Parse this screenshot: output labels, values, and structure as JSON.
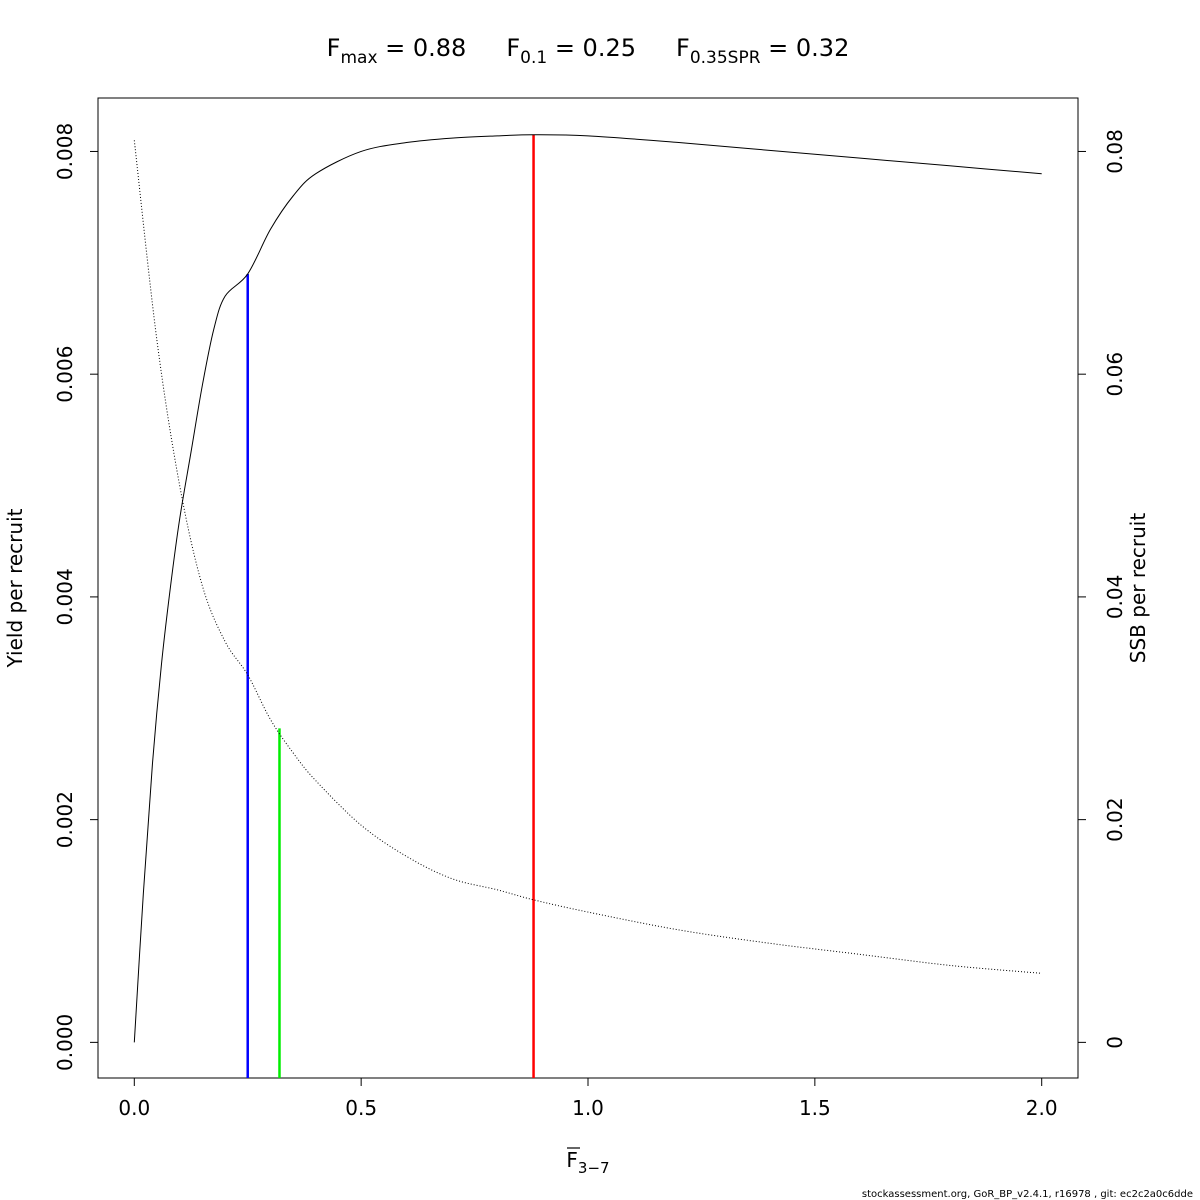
{
  "chart_data": {
    "type": "line",
    "title": {
      "fmax": {
        "base": "F",
        "sub": "max",
        "text": " = 0.88"
      },
      "f01": {
        "base": "F",
        "sub": "0.1",
        "text": " = 0.25"
      },
      "fspr": {
        "base": "F",
        "sub": "0.35SPR",
        "text": " = 0.32"
      }
    },
    "xlabel": {
      "base": "F",
      "sub": "3−7"
    },
    "ylabel": "Yield per recruit",
    "ylabel_right": "SSB per recruit",
    "xlim": [
      -0.08,
      2.08
    ],
    "ylim": [
      -0.00032,
      0.00848
    ],
    "ylim_right": [
      -0.0032,
      0.0848
    ],
    "x_ticks": [
      0.0,
      0.5,
      1.0,
      1.5,
      2.0
    ],
    "x_tick_labels": [
      "0.0",
      "0.5",
      "1.0",
      "1.5",
      "2.0"
    ],
    "y_ticks": [
      0.0,
      0.002,
      0.004,
      0.006,
      0.008
    ],
    "y_tick_labels": [
      "0.000",
      "0.002",
      "0.004",
      "0.006",
      "0.008"
    ],
    "y_right_ticks": [
      0,
      0.02,
      0.04,
      0.06,
      0.08
    ],
    "y_right_tick_labels": [
      "0",
      "0.02",
      "0.04",
      "0.06",
      "0.08"
    ],
    "grid": false,
    "series": [
      {
        "axis": "left",
        "style": "solid",
        "color": "#000000",
        "x": [
          0,
          0.02,
          0.04,
          0.06,
          0.08,
          0.1,
          0.125,
          0.15,
          0.175,
          0.2,
          0.25,
          0.3,
          0.35,
          0.4,
          0.5,
          0.6,
          0.7,
          0.8,
          0.88,
          1.0,
          1.2,
          1.4,
          1.6,
          1.8,
          2.0
        ],
        "values": [
          0.0,
          0.00134,
          0.0025,
          0.0034,
          0.0041,
          0.0047,
          0.0053,
          0.0059,
          0.0064,
          0.0067,
          0.0069,
          0.0073,
          0.0076,
          0.0078,
          0.008,
          0.00808,
          0.00812,
          0.00814,
          0.00815,
          0.00814,
          0.00808,
          0.00801,
          0.00794,
          0.00787,
          0.0078
        ]
      },
      {
        "axis": "right",
        "style": "dotted",
        "color": "#000000",
        "x": [
          0,
          0.05,
          0.1,
          0.15,
          0.2,
          0.25,
          0.3,
          0.35,
          0.4,
          0.5,
          0.6,
          0.7,
          0.8,
          0.88,
          1.0,
          1.2,
          1.4,
          1.6,
          1.8,
          2.0
        ],
        "values": [
          0.081,
          0.063,
          0.05,
          0.041,
          0.036,
          0.033,
          0.029,
          0.026,
          0.0235,
          0.0195,
          0.0167,
          0.0147,
          0.0137,
          0.0128,
          0.0117,
          0.0101,
          0.0089,
          0.0079,
          0.0069,
          0.0062
        ]
      }
    ],
    "reference_lines": [
      {
        "x": 0.25,
        "y": 0.0069,
        "color": "#0000ff"
      },
      {
        "x": 0.32,
        "y": 0.00282,
        "color": "#00ee00"
      },
      {
        "x": 0.88,
        "y": 0.00815,
        "color": "#ff0000"
      }
    ]
  },
  "footer": "stockassessment.org, GoR_BP_v2.4.1, r16978 , git: ec2c2a0c6dde"
}
